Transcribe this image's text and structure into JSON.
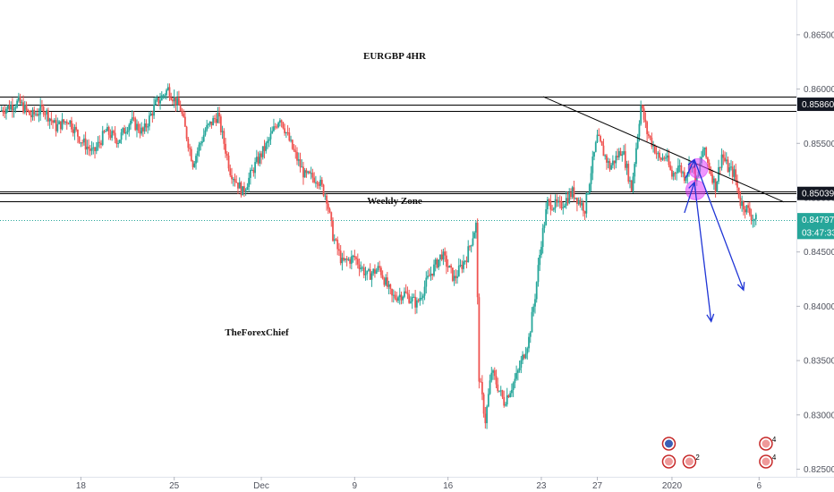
{
  "chart_data": {
    "type": "candlestick",
    "title": "EURGBP 4HR",
    "annotations": [
      "Weekly Zone",
      "TheForexChief"
    ],
    "y_axis": {
      "ticks": [
        "0.86500",
        "0.86000",
        "0.85500",
        "0.85000",
        "0.84500",
        "0.84000",
        "0.83500",
        "0.83000",
        "0.82500"
      ],
      "tick_values": [
        0.865,
        0.86,
        0.855,
        0.85,
        0.845,
        0.84,
        0.835,
        0.83,
        0.825
      ],
      "range": [
        0.8243,
        0.8682
      ]
    },
    "x_axis": {
      "ticks": [
        "18",
        "25",
        "Dec",
        "9",
        "16",
        "23",
        "27",
        "2020",
        "6"
      ],
      "tick_positions": [
        8,
        23,
        37,
        52,
        67,
        82,
        91,
        103,
        117
      ],
      "range": [
        -5,
        123
      ]
    },
    "horizontal_levels": [
      {
        "value": 0.8593,
        "color": "#000000"
      },
      {
        "value": 0.8586,
        "color": "#000000"
      },
      {
        "value": 0.858,
        "color": "#000000"
      },
      {
        "value": 0.8506,
        "color": "#000000"
      },
      {
        "value": 0.85039,
        "color": "#000000"
      },
      {
        "value": 0.8497,
        "color": "#000000"
      }
    ],
    "price_labels": [
      {
        "text": "0.85860",
        "value": 0.8586,
        "style": "dark"
      },
      {
        "text": "0.85039",
        "value": 0.85039,
        "style": "dark"
      },
      {
        "text": "0.84797",
        "value": 0.84797,
        "style": "green"
      },
      {
        "text": "03:47:33",
        "value": 0.8468,
        "style": "green"
      }
    ],
    "current_price": 0.84797,
    "trendline": {
      "from": [
        82.3,
        0.8593
      ],
      "to": [
        121,
        0.8496
      ]
    },
    "highlight_circles": [
      {
        "x": 107.2,
        "y": 0.8527
      },
      {
        "x": 106.8,
        "y": 0.8507
      }
    ],
    "projection_arrows": [
      {
        "from": [
          105.0,
          0.8486
        ],
        "to": [
          106.6,
          0.8514
        ]
      },
      {
        "from": [
          106.6,
          0.8514
        ],
        "to": [
          109.3,
          0.8386
        ]
      },
      {
        "from": [
          105.2,
          0.8518
        ],
        "to": [
          106.6,
          0.8535
        ]
      },
      {
        "from": [
          106.6,
          0.8535
        ],
        "to": [
          114.5,
          0.8415
        ]
      }
    ],
    "events": [
      {
        "x": 102.5,
        "row": 1,
        "count": ""
      },
      {
        "x": 102.5,
        "row": 2,
        "count": ""
      },
      {
        "x": 105.8,
        "row": 2,
        "count": "2"
      },
      {
        "x": 118.1,
        "row": 1,
        "count": "4"
      },
      {
        "x": 118.1,
        "row": 2,
        "count": "4"
      }
    ],
    "candles": [],
    "price_path": [
      [
        -5,
        0.858
      ],
      [
        -2,
        0.8588
      ],
      [
        0,
        0.8575
      ],
      [
        2,
        0.8582
      ],
      [
        4,
        0.8565
      ],
      [
        6,
        0.8572
      ],
      [
        8,
        0.8553
      ],
      [
        10,
        0.8541
      ],
      [
        12,
        0.8561
      ],
      [
        14,
        0.8553
      ],
      [
        16,
        0.8571
      ],
      [
        18,
        0.856
      ],
      [
        20,
        0.8586
      ],
      [
        22,
        0.86
      ],
      [
        24,
        0.8582
      ],
      [
        26,
        0.8532
      ],
      [
        28,
        0.8562
      ],
      [
        30,
        0.8576
      ],
      [
        32,
        0.8525
      ],
      [
        34,
        0.8505
      ],
      [
        36,
        0.853
      ],
      [
        38,
        0.855
      ],
      [
        40,
        0.8575
      ],
      [
        42,
        0.8545
      ],
      [
        44,
        0.852
      ],
      [
        46,
        0.8518
      ],
      [
        47.5,
        0.85
      ],
      [
        48.5,
        0.8465
      ],
      [
        50,
        0.844
      ],
      [
        52,
        0.8445
      ],
      [
        54,
        0.8428
      ],
      [
        56,
        0.8435
      ],
      [
        58,
        0.8408
      ],
      [
        60,
        0.8412
      ],
      [
        62,
        0.8402
      ],
      [
        64,
        0.8428
      ],
      [
        66,
        0.8448
      ],
      [
        68,
        0.8425
      ],
      [
        70,
        0.8446
      ],
      [
        71.5,
        0.8475
      ],
      [
        72,
        0.8335
      ],
      [
        73,
        0.8295
      ],
      [
        74,
        0.834
      ],
      [
        76,
        0.8312
      ],
      [
        78,
        0.8335
      ],
      [
        80,
        0.837
      ],
      [
        81,
        0.841
      ],
      [
        82,
        0.846
      ],
      [
        83,
        0.8495
      ],
      [
        85,
        0.8492
      ],
      [
        87,
        0.8505
      ],
      [
        89,
        0.849
      ],
      [
        90,
        0.8525
      ],
      [
        91,
        0.8555
      ],
      [
        93,
        0.8528
      ],
      [
        95,
        0.8545
      ],
      [
        96.5,
        0.8508
      ],
      [
        98,
        0.8585
      ],
      [
        99,
        0.856
      ],
      [
        100,
        0.8548
      ],
      [
        101,
        0.8535
      ],
      [
        102,
        0.8538
      ],
      [
        103,
        0.852
      ],
      [
        104,
        0.853
      ],
      [
        105,
        0.852
      ],
      [
        106,
        0.8532
      ],
      [
        107,
        0.8515
      ],
      [
        108,
        0.8545
      ],
      [
        109,
        0.8528
      ],
      [
        110,
        0.851
      ],
      [
        111,
        0.854
      ],
      [
        112,
        0.8527
      ],
      [
        113,
        0.8522
      ],
      [
        114,
        0.8496
      ],
      [
        115,
        0.849
      ],
      [
        116,
        0.8481
      ],
      [
        116.5,
        0.84797
      ]
    ]
  }
}
